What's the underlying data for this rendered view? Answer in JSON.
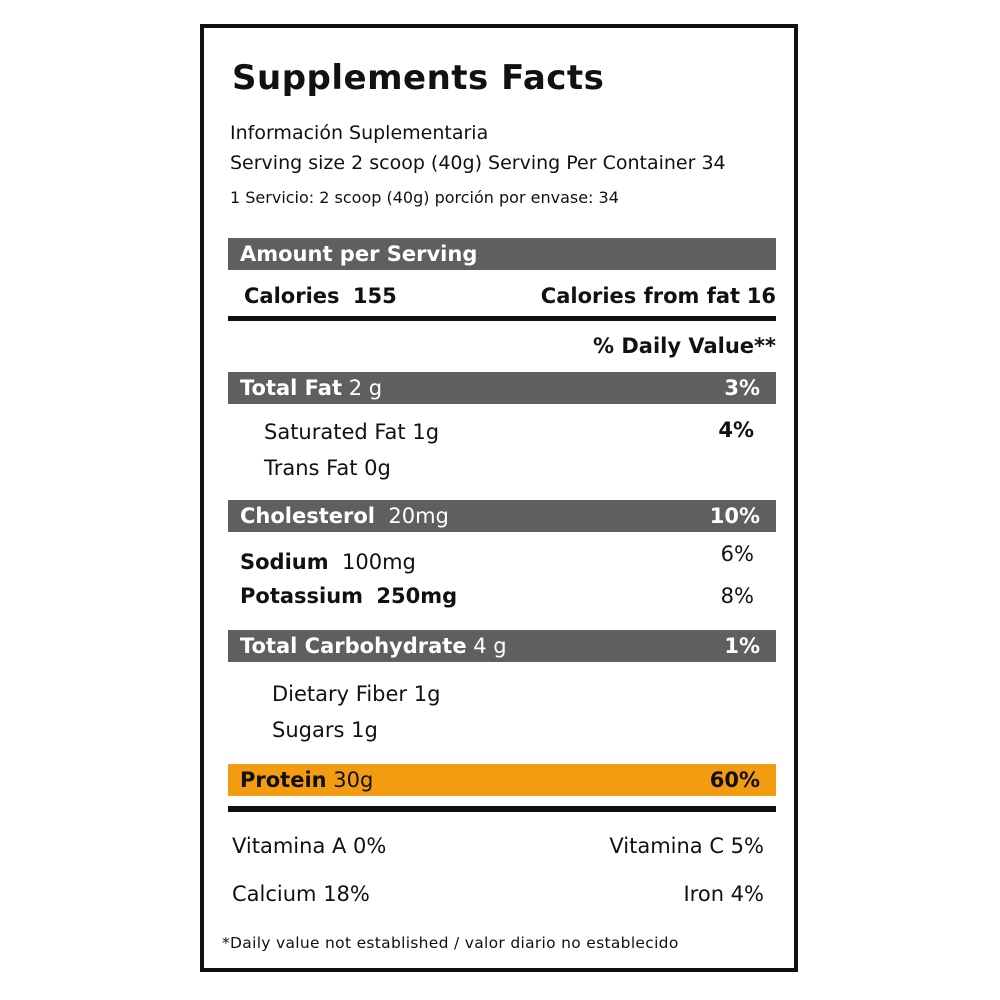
{
  "title": "Supplements Facts",
  "subtitle_es": "Información Suplementaria",
  "serving_line_en": "Serving size 2 scoop (40g) Serving Per Container 34",
  "serving_line_es": "1 Servicio: 2 scoop (40g) porción por envase: 34",
  "amount_header": "Amount per Serving",
  "calories": {
    "label": "Calories",
    "value": "155",
    "from_fat_label": "Calories from fat",
    "from_fat_value": "16"
  },
  "daily_value_header": "% Daily Value**",
  "total_fat": {
    "label": "Total Fat",
    "amount": "2 g",
    "dv": "3%"
  },
  "saturated_fat": {
    "label": "Saturated Fat 1g",
    "dv": "4%"
  },
  "trans_fat": {
    "label": "Trans Fat 0g"
  },
  "cholesterol": {
    "label": "Cholesterol",
    "amount": "20mg",
    "dv": "10%"
  },
  "sodium": {
    "label": "Sodium",
    "amount": "100mg",
    "dv": "6%"
  },
  "potassium": {
    "label": "Potassium",
    "amount": "250mg",
    "dv": "8%"
  },
  "total_carb": {
    "label": "Total Carbohydrate",
    "amount": "4 g",
    "dv": "1%"
  },
  "dietary_fiber": {
    "label": "Dietary Fiber 1g"
  },
  "sugars": {
    "label": "Sugars 1g"
  },
  "protein": {
    "label": "Protein",
    "amount": "30g",
    "dv": "60%"
  },
  "vitamins": {
    "vitamin_a": "Vitamina A 0%",
    "vitamin_c": "Vitamina C 5%",
    "calcium": "Calcium 18%",
    "iron": "Iron 4%"
  },
  "footnote": "*Daily value not established / valor diario no establecido",
  "colors": {
    "header_bar": "#5f5f5f",
    "protein_bar": "#f39c12",
    "border": "#111111"
  }
}
